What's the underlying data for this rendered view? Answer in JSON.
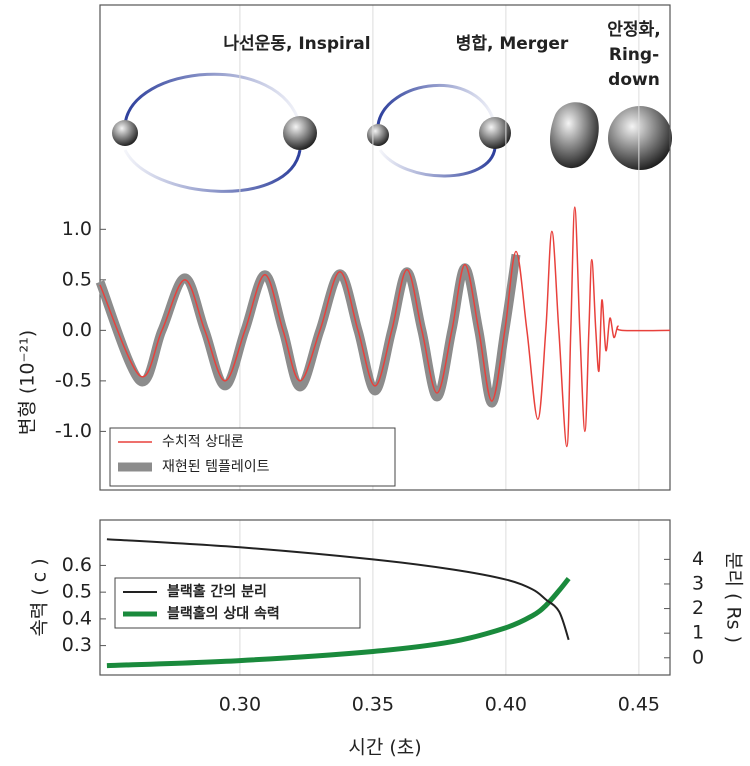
{
  "chart_data": [
    {
      "type": "line",
      "annotations": [
        "나선운동, Inspiral",
        "병합, Merger",
        "안정화,",
        "Ring-",
        "down"
      ],
      "y_label": "변형 (10⁻²¹)",
      "x": [
        0.2474,
        0.2624,
        0.2707,
        0.2793,
        0.2868,
        0.2944,
        0.3019,
        0.3094,
        0.3162,
        0.3226,
        0.3301,
        0.3376,
        0.3444,
        0.3508,
        0.3571,
        0.3628,
        0.3684,
        0.3741,
        0.3797,
        0.3846,
        0.3898,
        0.3947,
        0.3996,
        0.4038,
        0.4079,
        0.412,
        0.415,
        0.4173,
        0.4199,
        0.4229,
        0.4244,
        0.4259,
        0.4278,
        0.4297,
        0.4312,
        0.4323,
        0.4338,
        0.435,
        0.4361,
        0.4376,
        0.4391,
        0.4406,
        0.4421,
        0.4436,
        0.4617
      ],
      "series": [
        {
          "name": "수치적 상대론",
          "color": "#e8413c",
          "values": [
            0.45,
            -0.45,
            0,
            0.5,
            0,
            -0.5,
            0,
            0.55,
            0,
            -0.5,
            0,
            0.58,
            0,
            -0.55,
            0,
            0.6,
            0,
            -0.62,
            0,
            0.65,
            0,
            -0.7,
            0,
            0.78,
            0,
            -0.88,
            0,
            0.98,
            0,
            -1.15,
            0,
            1.22,
            0,
            -1.0,
            0,
            0.7,
            0,
            -0.4,
            0.3,
            -0.2,
            0.12,
            -0.07,
            0.04,
            0,
            0
          ]
        },
        {
          "name": "재현된 템플레이트",
          "color": "#8c8c8c",
          "values": [
            0.48,
            -0.5,
            0,
            0.52,
            0,
            -0.55,
            0,
            0.55,
            0,
            -0.56,
            0,
            0.56,
            0,
            -0.6,
            0,
            0.58,
            0,
            -0.66,
            0,
            0.62,
            0,
            -0.72,
            0,
            0.75,
            null,
            null,
            null,
            null,
            null,
            null,
            null,
            null,
            null,
            null,
            null,
            null,
            null,
            null,
            null,
            null,
            null,
            null,
            null,
            null,
            null
          ]
        }
      ],
      "xlim": [
        0.2474,
        0.4617
      ],
      "ylim": [
        -1.58,
        3.22
      ],
      "yticks": [
        {
          "value": 1,
          "label": "1.0"
        },
        0.5,
        {
          "value": 0,
          "label": "0.0"
        },
        -0.5,
        {
          "value": -1,
          "label": "-1.0"
        }
      ],
      "legend": "lower left"
    },
    {
      "type": "line",
      "x_label": "시간 (초)",
      "y_label": "속력 ( c )",
      "y2_label": "분리 ( Rs )",
      "x": [
        0.25,
        0.3,
        0.35,
        0.38,
        0.4,
        0.41,
        0.415,
        0.42,
        0.4236
      ],
      "series": [
        {
          "name": "블랙홀 간의 분리",
          "color": "#222222",
          "axis": "y2",
          "values": [
            4.82,
            4.49,
            4.0,
            3.59,
            3.18,
            2.78,
            2.37,
            1.88,
            0.73
          ]
        },
        {
          "name": "블랙홀의 상대 속력",
          "color": "#1a8a3c",
          "values": [
            0.225,
            0.244,
            0.278,
            0.315,
            0.367,
            0.412,
            0.45,
            0.506,
            0.551
          ]
        }
      ],
      "xlim": [
        0.2474,
        0.4617
      ],
      "xticks": [
        {
          "value": 0.3,
          "label": "0.30"
        },
        0.35,
        {
          "value": 0.4,
          "label": "0.40"
        },
        0.45
      ],
      "ylim": [
        0.19,
        0.77
      ],
      "yticks": [
        0.3,
        0.4,
        0.5,
        0.6
      ],
      "y2lim": [
        -0.7,
        5.6
      ],
      "y2ticks": [
        0,
        1,
        2,
        3,
        4
      ],
      "legend": "upper left"
    }
  ]
}
